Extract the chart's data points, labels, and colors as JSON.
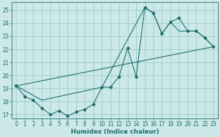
{
  "title": "",
  "xlabel": "Humidex (Indice chaleur)",
  "bg_color": "#cce8e8",
  "grid_color": "#99cccc",
  "line_color": "#1a6b6b",
  "xlim": [
    -0.5,
    23.5
  ],
  "ylim": [
    16.7,
    25.6
  ],
  "yticks": [
    17,
    18,
    19,
    20,
    21,
    22,
    23,
    24,
    25
  ],
  "xticks": [
    0,
    1,
    2,
    3,
    4,
    5,
    6,
    7,
    8,
    9,
    10,
    11,
    12,
    13,
    14,
    15,
    16,
    17,
    18,
    19,
    20,
    21,
    22,
    23
  ],
  "line1_x": [
    0,
    1,
    2,
    3,
    4,
    5,
    6,
    7,
    8,
    9,
    10,
    11,
    12,
    13,
    14,
    15,
    16,
    17,
    18,
    19,
    20,
    21,
    22,
    23
  ],
  "line1_y": [
    19.2,
    18.4,
    18.1,
    17.5,
    17.0,
    17.3,
    16.9,
    17.2,
    17.4,
    17.8,
    19.1,
    19.1,
    19.9,
    22.1,
    19.9,
    25.2,
    24.8,
    23.2,
    24.1,
    24.4,
    23.4,
    23.4,
    22.9,
    22.2
  ],
  "line2_x": [
    0,
    3,
    10,
    15,
    16,
    17,
    18,
    19,
    20,
    21,
    22,
    23
  ],
  "line2_y": [
    19.2,
    18.1,
    19.1,
    25.2,
    24.8,
    23.2,
    24.1,
    23.4,
    23.4,
    23.4,
    22.9,
    22.2
  ],
  "line3_x": [
    0,
    23
  ],
  "line3_y": [
    19.2,
    22.2
  ],
  "fontsize_label": 6.5,
  "fontsize_tick": 5.5
}
